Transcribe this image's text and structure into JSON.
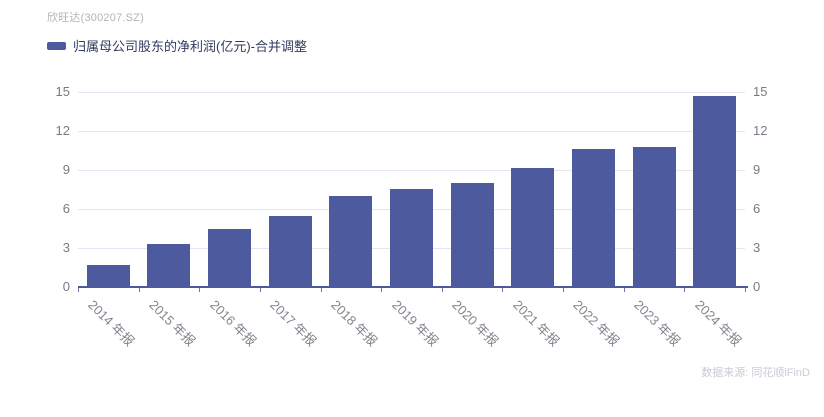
{
  "header": {
    "title": "欣旺达(300207.SZ)"
  },
  "legend": {
    "label": "归属母公司股东的净利润(亿元)-合并调整",
    "swatch_color": "#4d5a9d"
  },
  "footer": {
    "source": "数据来源: 同花顺iFinD"
  },
  "colors": {
    "bar": "#4d5a9d",
    "axis_line": "#4d5a9d",
    "gridline": "#e3e6f2",
    "axis_text": "#7a7a85",
    "title_text": "#b3b3bb",
    "legend_text": "#333a5e",
    "source_text": "#c9ccd6"
  },
  "chart_data": {
    "type": "bar",
    "title": "欣旺达(300207.SZ)",
    "series": [
      {
        "name": "归属母公司股东的净利润(亿元)-合并调整",
        "values": [
          1.69,
          3.29,
          4.5,
          5.44,
          7.01,
          7.51,
          8.02,
          9.16,
          10.64,
          10.76,
          14.68
        ]
      }
    ],
    "categories": [
      "2014 年报",
      "2015 年报",
      "2016 年报",
      "2017 年报",
      "2018 年报",
      "2019 年报",
      "2020 年报",
      "2021 年报",
      "2022 年报",
      "2023 年报",
      "2024 年报"
    ],
    "xlabel": "",
    "ylabel": "",
    "ylim": [
      0,
      15
    ],
    "yticks": [
      0,
      3,
      6,
      9,
      12,
      15
    ],
    "grid": true,
    "dual_y_axis": true,
    "legend_position": "top-left",
    "x_label_rotation_deg": 45
  }
}
